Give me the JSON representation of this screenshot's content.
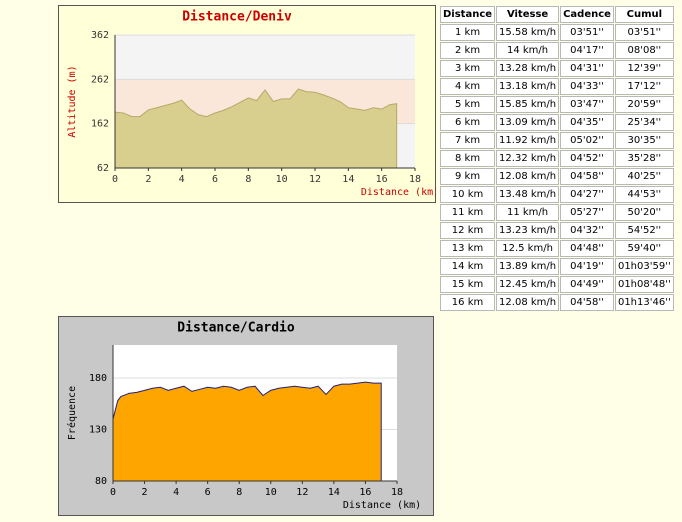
{
  "chart_data": [
    {
      "type": "area",
      "title": "Distance/Deniv",
      "xlabel": "Distance (km)",
      "ylabel": "Altitude (m)",
      "x": [
        0,
        0.5,
        1,
        1.5,
        2,
        2.5,
        3,
        3.5,
        4,
        4.5,
        5,
        5.5,
        6,
        6.5,
        7,
        7.5,
        8,
        8.5,
        9,
        9.5,
        10,
        10.5,
        11,
        11.5,
        12,
        12.5,
        13,
        13.5,
        14,
        14.5,
        15,
        15.5,
        16,
        16.5,
        16.9
      ],
      "values": [
        188,
        186,
        178,
        178,
        193,
        198,
        203,
        208,
        215,
        195,
        182,
        178,
        186,
        192,
        200,
        210,
        220,
        214,
        238,
        212,
        218,
        218,
        240,
        234,
        233,
        227,
        220,
        212,
        198,
        195,
        192,
        198,
        195,
        205,
        207
      ],
      "xlim": [
        0,
        18
      ],
      "ylim": [
        62,
        362
      ],
      "xticks": [
        0,
        2,
        4,
        6,
        8,
        10,
        12,
        14,
        16,
        18
      ],
      "yticks": [
        62,
        162,
        262,
        362
      ],
      "color": "#d8cf8f",
      "line_color": "#b5a968"
    },
    {
      "type": "area",
      "title": "Distance/Cardio",
      "xlabel": "Distance (km)",
      "ylabel": "Fréquence",
      "x": [
        0,
        0.3,
        0.5,
        1,
        1.5,
        2,
        2.5,
        3,
        3.5,
        4,
        4.5,
        5,
        5.5,
        6,
        6.5,
        7,
        7.5,
        8,
        8.5,
        9,
        9.5,
        10,
        10.5,
        11,
        11.5,
        12,
        12.5,
        13,
        13.5,
        14,
        14.5,
        15,
        15.5,
        16,
        16.5,
        17
      ],
      "values": [
        140,
        158,
        162,
        165,
        166,
        168,
        170,
        171,
        168,
        170,
        172,
        167,
        169,
        171,
        170,
        172,
        171,
        168,
        171,
        172,
        163,
        168,
        170,
        171,
        172,
        171,
        170,
        172,
        164,
        172,
        174,
        174,
        175,
        176,
        175,
        175
      ],
      "xlim": [
        0,
        18
      ],
      "ylim": [
        80,
        212
      ],
      "xticks": [
        0,
        2,
        4,
        6,
        8,
        10,
        12,
        14,
        16,
        18
      ],
      "yticks": [
        80,
        130,
        180
      ],
      "color": "#ffa500",
      "line_color": "#202080"
    }
  ],
  "table": {
    "header": [
      "Distance",
      "Vitesse",
      "Cadence",
      "Cumul"
    ],
    "rows": [
      [
        "1 km",
        "15.58 km/h",
        "03'51''",
        "03'51''"
      ],
      [
        "2 km",
        "14 km/h",
        "04'17''",
        "08'08''"
      ],
      [
        "3 km",
        "13.28 km/h",
        "04'31''",
        "12'39''"
      ],
      [
        "4 km",
        "13.18 km/h",
        "04'33''",
        "17'12''"
      ],
      [
        "5 km",
        "15.85 km/h",
        "03'47''",
        "20'59''"
      ],
      [
        "6 km",
        "13.09 km/h",
        "04'35''",
        "25'34''"
      ],
      [
        "7 km",
        "11.92 km/h",
        "05'02''",
        "30'35''"
      ],
      [
        "8 km",
        "12.32 km/h",
        "04'52''",
        "35'28''"
      ],
      [
        "9 km",
        "12.08 km/h",
        "04'58''",
        "40'25''"
      ],
      [
        "10 km",
        "13.48 km/h",
        "04'27''",
        "44'53''"
      ],
      [
        "11 km",
        "11 km/h",
        "05'27''",
        "50'20''"
      ],
      [
        "12 km",
        "13.23 km/h",
        "04'32''",
        "54'52''"
      ],
      [
        "13 km",
        "12.5 km/h",
        "04'48''",
        "59'40''"
      ],
      [
        "14 km",
        "13.89 km/h",
        "04'19''",
        "01h03'59''"
      ],
      [
        "15 km",
        "12.45 km/h",
        "04'49''",
        "01h08'48''"
      ],
      [
        "16 km",
        "12.08 km/h",
        "04'58''",
        "01h13'46''"
      ]
    ]
  }
}
